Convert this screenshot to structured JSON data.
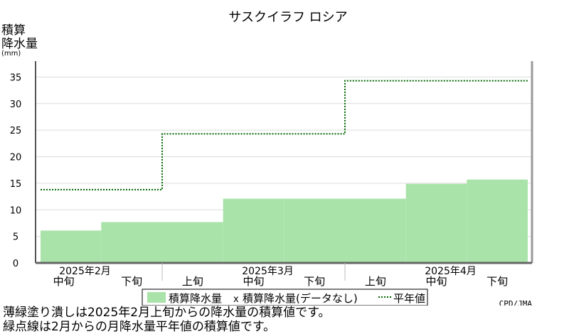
{
  "chart_data": {
    "type": "area",
    "title": "サスクイラフ ロシア",
    "ylabel_lines": [
      "積算",
      "降水量",
      "(mm)"
    ],
    "y_ticks": [
      0,
      5,
      10,
      15,
      20,
      25,
      30,
      35
    ],
    "ylim": [
      0,
      38
    ],
    "grid": true,
    "x_labels": [
      "中旬",
      "下旬",
      "上旬",
      "中旬",
      "下旬",
      "上旬",
      "中旬",
      "下旬"
    ],
    "month_labels": [
      "2025年2月",
      "2025年3月",
      "2025年4月"
    ],
    "series": [
      {
        "name": "積算降水量",
        "kind": "filled-step",
        "color": "#aae3aa",
        "values": [
          6.1,
          7.7,
          7.7,
          12.1,
          12.1,
          12.1,
          14.9,
          15.7
        ]
      },
      {
        "name": "平年値",
        "kind": "dotted-step",
        "color": "#006400",
        "values": [
          13.8,
          13.8,
          24.3,
          24.3,
          24.3,
          34.3,
          34.3,
          34.3
        ]
      }
    ],
    "legend": {
      "placement": "bottom",
      "entries": [
        "積算降水量",
        "積算降水量(データなし)",
        "平年値"
      ]
    },
    "credit": "CPD/JMA"
  },
  "notes": [
    "薄緑塗り潰しは2025年2月上旬からの降水量の積算値です。",
    "緑点線は2月からの月降水量平年値の積算値です。"
  ]
}
